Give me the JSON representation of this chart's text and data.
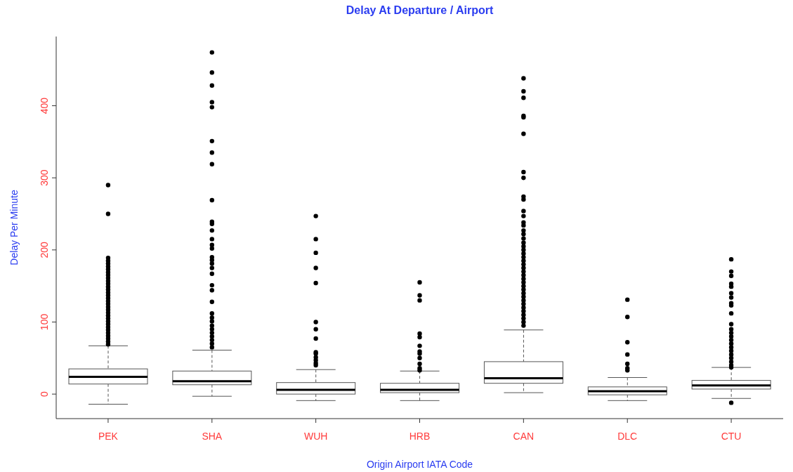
{
  "chart_data": {
    "type": "box",
    "title": "Delay At Departure / Airport",
    "xlabel": "Origin Airport IATA Code",
    "ylabel": "Delay Per Minute",
    "categories": [
      "PEK",
      "SHA",
      "WUH",
      "HRB",
      "CAN",
      "DLC",
      "CTU"
    ],
    "boxes": [
      {
        "low": -14,
        "q1": 14,
        "median": 24,
        "q3": 35,
        "high": 67,
        "outliers": [
          290,
          250,
          189,
          185,
          181,
          177,
          173,
          169,
          165,
          161,
          157,
          153,
          149,
          145,
          141,
          137,
          133,
          129,
          125,
          121,
          117,
          113,
          109,
          105,
          101,
          97,
          93,
          89,
          85,
          81,
          77,
          73,
          69
        ]
      },
      {
        "low": -3,
        "q1": 13,
        "median": 18,
        "q3": 32,
        "high": 61,
        "outliers": [
          474,
          446,
          428,
          405,
          398,
          351,
          335,
          319,
          269,
          239,
          236,
          227,
          215,
          207,
          202,
          190,
          186,
          181,
          175,
          167,
          151,
          144,
          128,
          112,
          106,
          101,
          95,
          90,
          85,
          80,
          75,
          70,
          65
        ]
      },
      {
        "low": -9,
        "q1": 0,
        "median": 6,
        "q3": 16,
        "high": 34,
        "outliers": [
          247,
          215,
          196,
          175,
          154,
          100,
          90,
          77,
          58,
          56,
          51,
          47,
          43,
          40
        ]
      },
      {
        "low": -9,
        "q1": 2,
        "median": 6,
        "q3": 15,
        "high": 32,
        "outliers": [
          155,
          137,
          130,
          84,
          79,
          67,
          59,
          56,
          50,
          42,
          36,
          33
        ]
      },
      {
        "low": 2,
        "q1": 15,
        "median": 22,
        "q3": 45,
        "high": 89,
        "outliers": [
          438,
          420,
          411,
          386,
          384,
          361,
          308,
          300,
          274,
          270,
          254,
          247,
          238,
          234,
          227,
          222,
          216,
          210,
          205,
          200,
          195,
          190,
          185,
          180,
          175,
          170,
          165,
          160,
          155,
          150,
          145,
          140,
          135,
          130,
          125,
          120,
          115,
          110,
          105,
          100,
          95
        ]
      },
      {
        "low": -9,
        "q1": -1,
        "median": 4,
        "q3": 10,
        "high": 23,
        "outliers": [
          131,
          107,
          72,
          55,
          42,
          36,
          33
        ]
      },
      {
        "low": -6,
        "q1": 7,
        "median": 12,
        "q3": 19,
        "high": 37,
        "outliers": [
          187,
          170,
          164,
          153,
          149,
          140,
          134,
          126,
          123,
          112,
          97,
          90,
          85,
          80,
          75,
          70,
          65,
          60,
          55,
          50,
          45,
          40,
          37,
          -12
        ]
      }
    ],
    "ylim": [
      -34,
      496
    ],
    "yticks": [
      0,
      100,
      200,
      300,
      400
    ],
    "marker": "circle"
  }
}
